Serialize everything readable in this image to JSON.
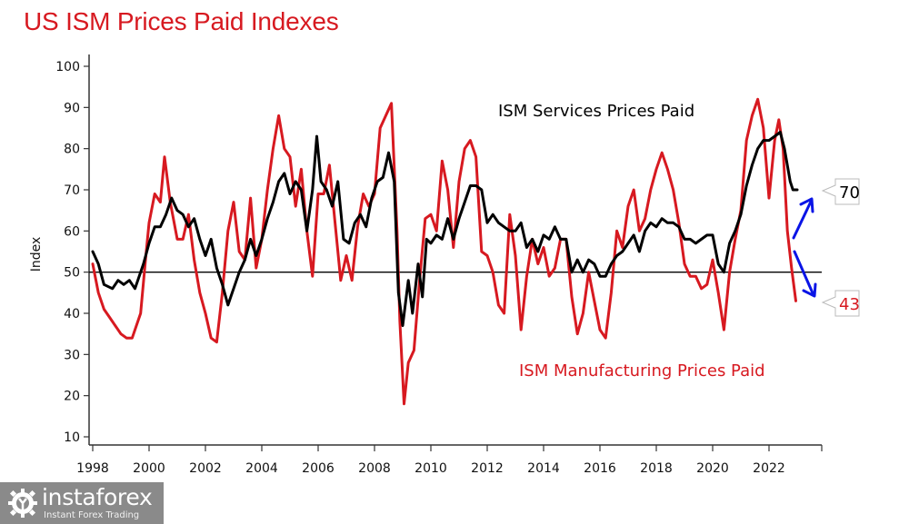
{
  "chart_data": {
    "type": "line",
    "title": "US ISM Prices Paid Indexes",
    "xlabel": "",
    "ylabel": "Index",
    "xlim": [
      1998,
      2023.9
    ],
    "ylim": [
      7,
      102
    ],
    "yticks": [
      10,
      20,
      30,
      40,
      50,
      60,
      70,
      80,
      90,
      100
    ],
    "xticks": [
      1998,
      2000,
      2002,
      2004,
      2006,
      2008,
      2010,
      2012,
      2014,
      2016,
      2018,
      2020,
      2022
    ],
    "xtick_labels": [
      "1998",
      "2000",
      "2002",
      "2004",
      "2006",
      "2008",
      "2010",
      "2012",
      "2014",
      "2016",
      "2018",
      "2020",
      "2022"
    ],
    "reference_line": 50,
    "grid": false,
    "series": [
      {
        "name": "ISM Services Prices Paid",
        "color": "#000000",
        "label_position": "top-center",
        "points": [
          [
            1998.0,
            55
          ],
          [
            1998.2,
            52
          ],
          [
            1998.4,
            47
          ],
          [
            1998.7,
            46
          ],
          [
            1998.9,
            48
          ],
          [
            1999.1,
            47
          ],
          [
            1999.3,
            48
          ],
          [
            1999.5,
            46
          ],
          [
            1999.8,
            52
          ],
          [
            2000.0,
            57
          ],
          [
            2000.2,
            61
          ],
          [
            2000.4,
            61
          ],
          [
            2000.6,
            64
          ],
          [
            2000.8,
            68
          ],
          [
            2001.0,
            65
          ],
          [
            2001.2,
            64
          ],
          [
            2001.4,
            61
          ],
          [
            2001.6,
            63
          ],
          [
            2001.8,
            58
          ],
          [
            2002.0,
            54
          ],
          [
            2002.2,
            58
          ],
          [
            2002.4,
            51
          ],
          [
            2002.6,
            47
          ],
          [
            2002.8,
            42
          ],
          [
            2003.0,
            46
          ],
          [
            2003.2,
            50
          ],
          [
            2003.4,
            53
          ],
          [
            2003.6,
            58
          ],
          [
            2003.8,
            54
          ],
          [
            2004.0,
            58
          ],
          [
            2004.2,
            63
          ],
          [
            2004.4,
            67
          ],
          [
            2004.6,
            72
          ],
          [
            2004.8,
            74
          ],
          [
            2005.0,
            69
          ],
          [
            2005.2,
            72
          ],
          [
            2005.4,
            70
          ],
          [
            2005.6,
            60
          ],
          [
            2005.8,
            70
          ],
          [
            2005.95,
            83
          ],
          [
            2006.1,
            72
          ],
          [
            2006.3,
            70
          ],
          [
            2006.5,
            66
          ],
          [
            2006.7,
            72
          ],
          [
            2006.9,
            58
          ],
          [
            2007.1,
            57
          ],
          [
            2007.3,
            62
          ],
          [
            2007.5,
            64
          ],
          [
            2007.7,
            61
          ],
          [
            2007.9,
            68
          ],
          [
            2008.1,
            72
          ],
          [
            2008.3,
            73
          ],
          [
            2008.5,
            79
          ],
          [
            2008.7,
            72
          ],
          [
            2008.85,
            45
          ],
          [
            2009.0,
            37
          ],
          [
            2009.2,
            48
          ],
          [
            2009.35,
            40
          ],
          [
            2009.55,
            52
          ],
          [
            2009.7,
            44
          ],
          [
            2009.85,
            58
          ],
          [
            2010.0,
            57
          ],
          [
            2010.2,
            59
          ],
          [
            2010.4,
            58
          ],
          [
            2010.6,
            63
          ],
          [
            2010.8,
            58
          ],
          [
            2011.0,
            63
          ],
          [
            2011.2,
            67
          ],
          [
            2011.4,
            71
          ],
          [
            2011.6,
            71
          ],
          [
            2011.8,
            70
          ],
          [
            2012.0,
            62
          ],
          [
            2012.2,
            64
          ],
          [
            2012.4,
            62
          ],
          [
            2012.6,
            61
          ],
          [
            2012.8,
            60
          ],
          [
            2013.0,
            60
          ],
          [
            2013.2,
            62
          ],
          [
            2013.4,
            56
          ],
          [
            2013.6,
            58
          ],
          [
            2013.8,
            55
          ],
          [
            2014.0,
            59
          ],
          [
            2014.2,
            58
          ],
          [
            2014.4,
            61
          ],
          [
            2014.6,
            58
          ],
          [
            2014.8,
            58
          ],
          [
            2015.0,
            50
          ],
          [
            2015.2,
            53
          ],
          [
            2015.4,
            50
          ],
          [
            2015.6,
            53
          ],
          [
            2015.8,
            52
          ],
          [
            2016.0,
            49
          ],
          [
            2016.2,
            49
          ],
          [
            2016.4,
            52
          ],
          [
            2016.6,
            54
          ],
          [
            2016.8,
            55
          ],
          [
            2017.0,
            57
          ],
          [
            2017.2,
            59
          ],
          [
            2017.4,
            55
          ],
          [
            2017.6,
            60
          ],
          [
            2017.8,
            62
          ],
          [
            2018.0,
            61
          ],
          [
            2018.2,
            63
          ],
          [
            2018.4,
            62
          ],
          [
            2018.6,
            62
          ],
          [
            2018.8,
            61
          ],
          [
            2019.0,
            58
          ],
          [
            2019.2,
            58
          ],
          [
            2019.4,
            57
          ],
          [
            2019.6,
            58
          ],
          [
            2019.8,
            59
          ],
          [
            2020.0,
            59
          ],
          [
            2020.2,
            52
          ],
          [
            2020.4,
            50
          ],
          [
            2020.6,
            57
          ],
          [
            2020.8,
            60
          ],
          [
            2021.0,
            64
          ],
          [
            2021.2,
            71
          ],
          [
            2021.4,
            76
          ],
          [
            2021.6,
            80
          ],
          [
            2021.8,
            82
          ],
          [
            2022.0,
            82
          ],
          [
            2022.2,
            83
          ],
          [
            2022.4,
            84
          ],
          [
            2022.55,
            80
          ],
          [
            2022.75,
            72
          ],
          [
            2022.85,
            70
          ],
          [
            2023.0,
            70
          ]
        ]
      },
      {
        "name": "ISM Manufacturing Prices Paid",
        "color": "#d71920",
        "label_position": "bottom-right",
        "points": [
          [
            1998.0,
            52
          ],
          [
            1998.2,
            45
          ],
          [
            1998.4,
            41
          ],
          [
            1998.6,
            39
          ],
          [
            1998.8,
            37
          ],
          [
            1999.0,
            35
          ],
          [
            1999.2,
            34
          ],
          [
            1999.4,
            34
          ],
          [
            1999.7,
            40
          ],
          [
            1999.9,
            55
          ],
          [
            2000.0,
            62
          ],
          [
            2000.2,
            69
          ],
          [
            2000.4,
            67
          ],
          [
            2000.55,
            78
          ],
          [
            2000.75,
            67
          ],
          [
            2001.0,
            58
          ],
          [
            2001.2,
            58
          ],
          [
            2001.4,
            64
          ],
          [
            2001.6,
            53
          ],
          [
            2001.8,
            45
          ],
          [
            2002.0,
            40
          ],
          [
            2002.2,
            34
          ],
          [
            2002.4,
            33
          ],
          [
            2002.6,
            45
          ],
          [
            2002.8,
            60
          ],
          [
            2003.0,
            67
          ],
          [
            2003.2,
            55
          ],
          [
            2003.4,
            53
          ],
          [
            2003.6,
            68
          ],
          [
            2003.8,
            51
          ],
          [
            2004.0,
            58
          ],
          [
            2004.2,
            70
          ],
          [
            2004.4,
            80
          ],
          [
            2004.6,
            88
          ],
          [
            2004.8,
            80
          ],
          [
            2005.0,
            78
          ],
          [
            2005.2,
            66
          ],
          [
            2005.4,
            75
          ],
          [
            2005.6,
            60
          ],
          [
            2005.8,
            49
          ],
          [
            2006.0,
            69
          ],
          [
            2006.2,
            69
          ],
          [
            2006.4,
            76
          ],
          [
            2006.6,
            62
          ],
          [
            2006.8,
            48
          ],
          [
            2007.0,
            54
          ],
          [
            2007.2,
            48
          ],
          [
            2007.4,
            61
          ],
          [
            2007.6,
            69
          ],
          [
            2007.8,
            66
          ],
          [
            2008.0,
            69
          ],
          [
            2008.2,
            85
          ],
          [
            2008.4,
            88
          ],
          [
            2008.6,
            91
          ],
          [
            2008.8,
            60
          ],
          [
            2008.9,
            38
          ],
          [
            2009.05,
            18
          ],
          [
            2009.2,
            28
          ],
          [
            2009.4,
            31
          ],
          [
            2009.6,
            48
          ],
          [
            2009.8,
            63
          ],
          [
            2010.0,
            64
          ],
          [
            2010.2,
            60
          ],
          [
            2010.4,
            77
          ],
          [
            2010.6,
            70
          ],
          [
            2010.8,
            56
          ],
          [
            2011.0,
            72
          ],
          [
            2011.2,
            80
          ],
          [
            2011.4,
            82
          ],
          [
            2011.6,
            78
          ],
          [
            2011.8,
            55
          ],
          [
            2012.0,
            54
          ],
          [
            2012.2,
            50
          ],
          [
            2012.4,
            42
          ],
          [
            2012.6,
            40
          ],
          [
            2012.8,
            64
          ],
          [
            2013.0,
            54
          ],
          [
            2013.2,
            36
          ],
          [
            2013.4,
            49
          ],
          [
            2013.6,
            58
          ],
          [
            2013.8,
            52
          ],
          [
            2014.0,
            56
          ],
          [
            2014.2,
            49
          ],
          [
            2014.4,
            51
          ],
          [
            2014.6,
            58
          ],
          [
            2014.8,
            58
          ],
          [
            2015.0,
            44
          ],
          [
            2015.2,
            35
          ],
          [
            2015.4,
            40
          ],
          [
            2015.6,
            50
          ],
          [
            2015.8,
            43
          ],
          [
            2016.0,
            36
          ],
          [
            2016.2,
            34
          ],
          [
            2016.4,
            45
          ],
          [
            2016.6,
            60
          ],
          [
            2016.8,
            56
          ],
          [
            2017.0,
            66
          ],
          [
            2017.2,
            70
          ],
          [
            2017.4,
            60
          ],
          [
            2017.6,
            63
          ],
          [
            2017.8,
            70
          ],
          [
            2018.0,
            75
          ],
          [
            2018.2,
            79
          ],
          [
            2018.4,
            75
          ],
          [
            2018.6,
            70
          ],
          [
            2018.8,
            62
          ],
          [
            2019.0,
            52
          ],
          [
            2019.2,
            49
          ],
          [
            2019.4,
            49
          ],
          [
            2019.6,
            46
          ],
          [
            2019.8,
            47
          ],
          [
            2020.0,
            53
          ],
          [
            2020.2,
            45
          ],
          [
            2020.4,
            36
          ],
          [
            2020.6,
            50
          ],
          [
            2020.8,
            58
          ],
          [
            2021.0,
            65
          ],
          [
            2021.2,
            82
          ],
          [
            2021.4,
            88
          ],
          [
            2021.6,
            92
          ],
          [
            2021.8,
            85
          ],
          [
            2022.0,
            68
          ],
          [
            2022.2,
            82
          ],
          [
            2022.35,
            87
          ],
          [
            2022.5,
            80
          ],
          [
            2022.65,
            60
          ],
          [
            2022.8,
            51
          ],
          [
            2022.95,
            43
          ]
        ]
      }
    ],
    "annotations": [
      {
        "text": "ISM Services Prices Paid",
        "color": "#000000"
      },
      {
        "text": "ISM Manufacturing Prices Paid",
        "color": "#d71920"
      },
      {
        "text": "70",
        "color": "#000000",
        "kind": "value-callout",
        "value": 70
      },
      {
        "text": "43",
        "color": "#d71920",
        "kind": "value-callout",
        "value": 43
      }
    ],
    "arrows": [
      {
        "direction": "up",
        "color": "#0000ee"
      },
      {
        "direction": "down",
        "color": "#0000ee"
      }
    ]
  },
  "branding": {
    "name": "instaforex",
    "tagline": "Instant Forex Trading"
  }
}
